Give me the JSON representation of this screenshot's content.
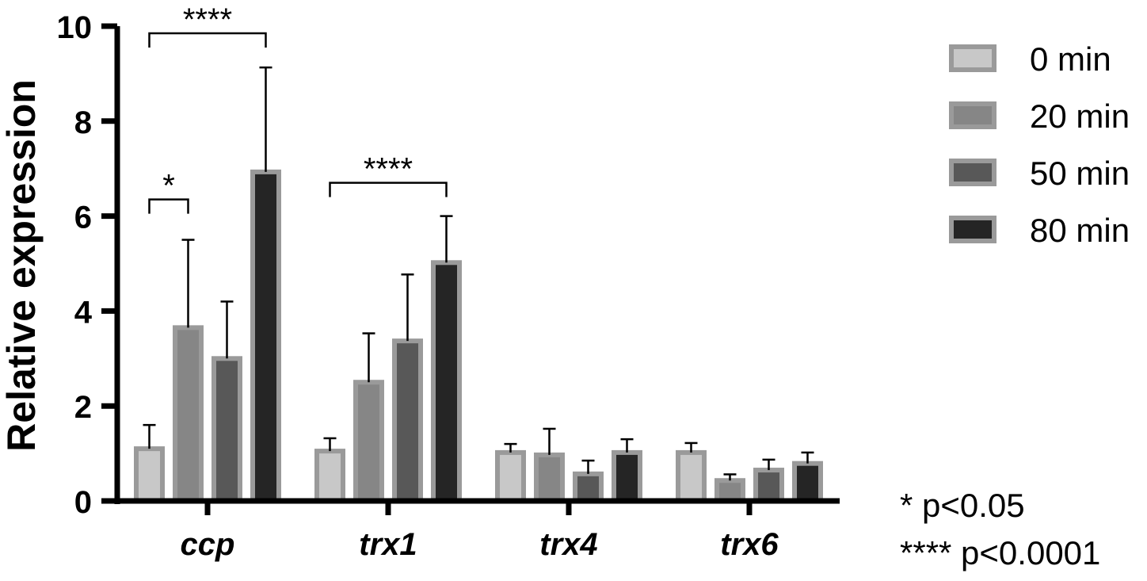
{
  "chart_data": {
    "type": "bar",
    "title": "",
    "xlabel": "",
    "ylabel": "Relative expression",
    "ylim": [
      0,
      10
    ],
    "yticks": [
      "0",
      "2",
      "4",
      "6",
      "8",
      "10"
    ],
    "categories": [
      "ccp",
      "trx1",
      "trx4",
      "trx6"
    ],
    "grid": false,
    "legend_position": "top-right",
    "series": [
      {
        "name": "0 min",
        "color": "#c8c8c8",
        "values": [
          1.1,
          1.05,
          1.02,
          1.02
        ],
        "errors": [
          0.5,
          0.27,
          0.18,
          0.2
        ]
      },
      {
        "name": "20 min",
        "color": "#868686",
        "values": [
          3.65,
          2.5,
          0.97,
          0.43
        ],
        "errors": [
          1.85,
          1.03,
          0.55,
          0.13
        ]
      },
      {
        "name": "50 min",
        "color": "#585858",
        "values": [
          3.0,
          3.37,
          0.57,
          0.65
        ],
        "errors": [
          1.2,
          1.4,
          0.28,
          0.22
        ]
      },
      {
        "name": "80 min",
        "color": "#252525",
        "values": [
          6.93,
          5.02,
          1.02,
          0.79
        ],
        "errors": [
          2.2,
          0.98,
          0.28,
          0.23
        ]
      }
    ],
    "significance": [
      {
        "category": "ccp",
        "from_series": 0,
        "to_series": 1,
        "label": "*",
        "level": 6.35
      },
      {
        "category": "ccp",
        "from_series": 0,
        "to_series": 3,
        "label": "****",
        "level": 9.85
      },
      {
        "category": "trx1",
        "from_series": 0,
        "to_series": 3,
        "label": "****",
        "level": 6.7
      }
    ]
  },
  "legend": {
    "items": [
      {
        "label": "0 min",
        "color": "#c8c8c8"
      },
      {
        "label": "20 min",
        "color": "#868686"
      },
      {
        "label": "50 min",
        "color": "#585858"
      },
      {
        "label": "80 min",
        "color": "#252525"
      }
    ]
  },
  "notes": {
    "p1": "* p<0.05",
    "p2": "**** p<0.0001"
  }
}
